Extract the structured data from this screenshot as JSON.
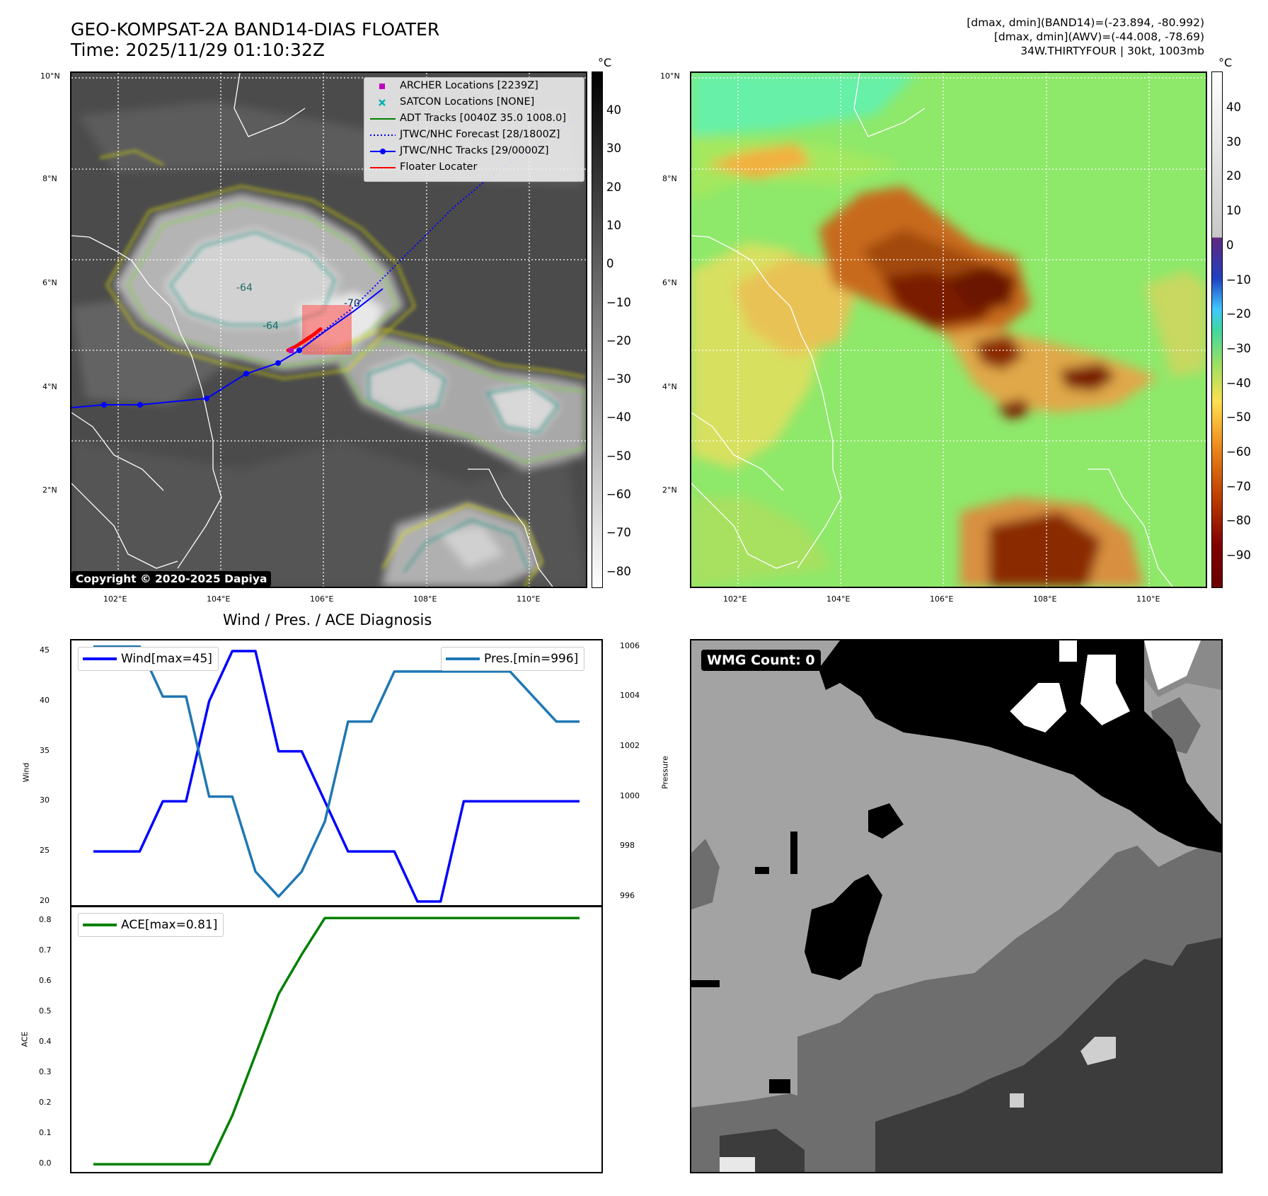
{
  "header": {
    "title_line1": "GEO-KOMPSAT-2A BAND14-DIAS FLOATER",
    "title_line2": "Time: 2025/11/29 01:10:32Z",
    "stat_line1": "[dmax, dmin](BAND14)=(-23.894, -80.992)",
    "stat_line2": "[dmax, dmin](AWV)=(-44.008, -78.69)",
    "stat_line3": "34W.THIRTYFOUR | 30kt, 1003mb"
  },
  "map_axes": {
    "lat_labels": [
      "10°N",
      "8°N",
      "6°N",
      "4°N",
      "2°N"
    ],
    "lon_labels": [
      "102°E",
      "104°E",
      "106°E",
      "108°E",
      "110°E"
    ]
  },
  "ir_panel": {
    "legend": [
      {
        "label": "ARCHER Locations [2239Z]",
        "marker": "square",
        "color": "#c000c0"
      },
      {
        "label": "SATCON Locations [NONE]",
        "marker": "x",
        "color": "#00b0b0"
      },
      {
        "label": "ADT Tracks [0040Z 35.0 1008.0]",
        "marker": "line",
        "color": "#008000"
      },
      {
        "label": "JTWC/NHC Forecast [28/1800Z]",
        "marker": "dotted",
        "color": "#0000ff"
      },
      {
        "label": "JTWC/NHC Tracks [29/0000Z]",
        "marker": "line-dot",
        "color": "#0000ff"
      },
      {
        "label": "Floater Locater",
        "marker": "line",
        "color": "#ff0000"
      }
    ],
    "copyright": "Copyright © 2020-2025 Dapiya",
    "contour_labels": [
      "-64",
      "-64",
      "-70"
    ],
    "colorbar": {
      "unit": "°C",
      "ticks": [
        "40",
        "30",
        "20",
        "10",
        "0",
        "−10",
        "−20",
        "−30",
        "−40",
        "−50",
        "−60",
        "−70",
        "−80"
      ]
    }
  },
  "awv_panel": {
    "colorbar": {
      "unit": "°C",
      "ticks": [
        "40",
        "30",
        "20",
        "10",
        "0",
        "−10",
        "−20",
        "−30",
        "−40",
        "−50",
        "−60",
        "−70",
        "−80",
        "−90"
      ]
    }
  },
  "diag_title": "Wind / Pres. / ACE Diagnosis",
  "wmg_label": "WMG Count: 0",
  "chart_data": [
    {
      "type": "line",
      "title": "Wind / Pres. / ACE Diagnosis",
      "ylabel": "Wind",
      "y2label": "Pressure",
      "ylim": [
        19.5,
        46.2
      ],
      "y2lim": [
        995.6,
        1006.3
      ],
      "series": [
        {
          "name": "Wind[max=45]",
          "axis": "left",
          "color": "#0000ff",
          "values": [
            25,
            25,
            25,
            30,
            30,
            40,
            45,
            45,
            35,
            35,
            30,
            25,
            25,
            25,
            20,
            20,
            30,
            30,
            30,
            30,
            30,
            30
          ]
        },
        {
          "name": "Pres.[min=996]",
          "axis": "right",
          "color": "#1f77b4",
          "values": [
            1006,
            1006,
            1006,
            1004,
            1004,
            1000,
            1000,
            997,
            996,
            997,
            999,
            1003,
            1003,
            1005,
            1005,
            1005,
            1005,
            1005,
            1005,
            1004,
            1003,
            1003
          ]
        }
      ],
      "yticks": [
        "20",
        "25",
        "30",
        "35",
        "40",
        "45"
      ],
      "y2ticks": [
        "996",
        "998",
        "1000",
        "1002",
        "1004",
        "1006"
      ]
    },
    {
      "type": "line",
      "ylabel": "ACE",
      "ylim": [
        -0.03,
        0.85
      ],
      "series": [
        {
          "name": "ACE[max=0.81]",
          "color": "#008000",
          "values": [
            0,
            0,
            0,
            0,
            0,
            0,
            0.16,
            0.36,
            0.56,
            0.69,
            0.81,
            0.81,
            0.81,
            0.81,
            0.81,
            0.81,
            0.81,
            0.81,
            0.81,
            0.81,
            0.81,
            0.81
          ]
        }
      ],
      "yticks": [
        "0.0",
        "0.1",
        "0.2",
        "0.3",
        "0.4",
        "0.5",
        "0.6",
        "0.7",
        "0.8"
      ]
    }
  ]
}
